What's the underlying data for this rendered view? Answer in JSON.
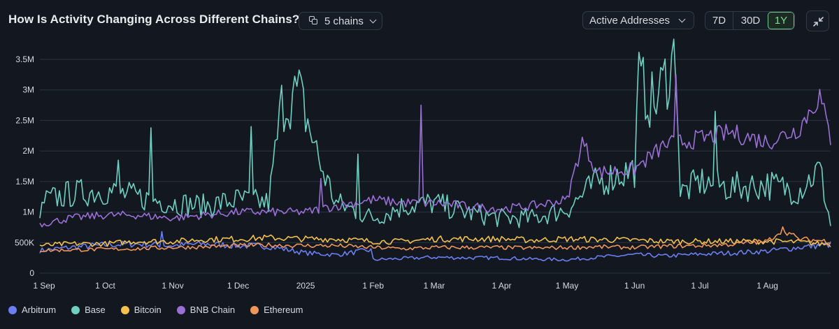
{
  "header": {
    "title": "How Is Activity Changing Across Different Chains?",
    "chains_label": "5 chains",
    "metric_label": "Active Addresses",
    "ranges": [
      "7D",
      "30D",
      "1Y"
    ],
    "active_range": "1Y"
  },
  "colors": {
    "background": "#131820",
    "grid": "#2a3442",
    "active_range": "#6fc98a"
  },
  "icons": {
    "chains": "copy-icon",
    "chains_dropdown": "chevron-down-icon",
    "metric_dropdown": "chevron-down-icon",
    "collapse": "collapse-arrows-icon"
  },
  "chart_data": {
    "type": "line",
    "title": "",
    "xlabel": "",
    "ylabel": "",
    "x": {
      "start": "2024-09-01",
      "end": "2025-08-30",
      "tick_labels": [
        "1 Sep",
        "1 Oct",
        "1 Nov",
        "1 Dec",
        "2025",
        "1 Feb",
        "1 Mar",
        "1 Apr",
        "1 May",
        "1 Jun",
        "1 Jul",
        "1 Aug"
      ]
    },
    "y": {
      "min": 0,
      "max": 3500000,
      "ticks": [
        0,
        500000,
        1000000,
        1500000,
        2000000,
        2500000,
        3000000,
        3500000
      ],
      "tick_labels": [
        "0",
        "500K",
        "1M",
        "1.5M",
        "2M",
        "2.5M",
        "3M",
        "3.5M"
      ]
    },
    "grid": true,
    "legend_position": "bottom-left",
    "series": [
      {
        "name": "Arbitrum",
        "color": "#6b7ff0",
        "points": [
          [
            "2024-09-01",
            370000
          ],
          [
            "2024-09-15",
            420000
          ],
          [
            "2024-10-01",
            460000
          ],
          [
            "2024-10-15",
            480000
          ],
          [
            "2024-10-27",
            680000
          ],
          [
            "2024-11-01",
            450000
          ],
          [
            "2024-11-15",
            480000
          ],
          [
            "2024-12-01",
            450000
          ],
          [
            "2024-12-15",
            440000
          ],
          [
            "2025-01-01",
            330000
          ],
          [
            "2025-01-15",
            300000
          ],
          [
            "2025-01-31",
            380000
          ],
          [
            "2025-02-01",
            220000
          ],
          [
            "2025-02-15",
            240000
          ],
          [
            "2025-03-01",
            260000
          ],
          [
            "2025-03-15",
            250000
          ],
          [
            "2025-04-01",
            250000
          ],
          [
            "2025-04-15",
            230000
          ],
          [
            "2025-05-01",
            220000
          ],
          [
            "2025-05-15",
            260000
          ],
          [
            "2025-06-01",
            300000
          ],
          [
            "2025-06-15",
            280000
          ],
          [
            "2025-07-01",
            310000
          ],
          [
            "2025-07-15",
            330000
          ],
          [
            "2025-08-01",
            360000
          ],
          [
            "2025-08-15",
            420000
          ],
          [
            "2025-08-30",
            470000
          ]
        ]
      },
      {
        "name": "Base",
        "color": "#6fd0c2",
        "points": [
          [
            "2024-09-01",
            900000
          ],
          [
            "2024-09-03",
            1180000
          ],
          [
            "2024-09-15",
            1300000
          ],
          [
            "2024-10-01",
            1350000
          ],
          [
            "2024-10-07",
            1850000
          ],
          [
            "2024-10-15",
            1250000
          ],
          [
            "2024-10-22",
            2380000
          ],
          [
            "2024-11-01",
            1150000
          ],
          [
            "2024-11-15",
            1100000
          ],
          [
            "2024-12-01",
            1200000
          ],
          [
            "2024-12-07",
            2400000
          ],
          [
            "2024-12-15",
            1150000
          ],
          [
            "2024-12-21",
            2750000
          ],
          [
            "2024-12-29",
            2950000
          ],
          [
            "2025-01-08",
            1750000
          ],
          [
            "2025-01-15",
            1150000
          ],
          [
            "2025-01-25",
            1950000
          ],
          [
            "2025-02-01",
            900000
          ],
          [
            "2025-02-15",
            1100000
          ],
          [
            "2025-03-01",
            1150000
          ],
          [
            "2025-03-15",
            1000000
          ],
          [
            "2025-04-01",
            900000
          ],
          [
            "2025-04-15",
            900000
          ],
          [
            "2025-05-01",
            1050000
          ],
          [
            "2025-05-15",
            1500000
          ],
          [
            "2025-06-01",
            1700000
          ],
          [
            "2025-06-03",
            3150000
          ],
          [
            "2025-06-10",
            2750000
          ],
          [
            "2025-06-20",
            3600000
          ],
          [
            "2025-06-22",
            1300000
          ],
          [
            "2025-07-01",
            1500000
          ],
          [
            "2025-07-08",
            2650000
          ],
          [
            "2025-07-15",
            1400000
          ],
          [
            "2025-08-01",
            1450000
          ],
          [
            "2025-08-15",
            1350000
          ],
          [
            "2025-08-25",
            1700000
          ],
          [
            "2025-08-30",
            800000
          ]
        ]
      },
      {
        "name": "Bitcoin",
        "color": "#f2c14e",
        "points": [
          [
            "2024-09-01",
            450000
          ],
          [
            "2024-09-15",
            480000
          ],
          [
            "2024-10-01",
            480000
          ],
          [
            "2024-10-15",
            520000
          ],
          [
            "2024-11-01",
            520000
          ],
          [
            "2024-11-15",
            550000
          ],
          [
            "2024-12-01",
            560000
          ],
          [
            "2024-12-15",
            580000
          ],
          [
            "2025-01-01",
            560000
          ],
          [
            "2025-01-15",
            560000
          ],
          [
            "2025-02-01",
            520000
          ],
          [
            "2025-02-15",
            520000
          ],
          [
            "2025-03-01",
            560000
          ],
          [
            "2025-03-15",
            560000
          ],
          [
            "2025-04-01",
            560000
          ],
          [
            "2025-04-15",
            540000
          ],
          [
            "2025-05-01",
            560000
          ],
          [
            "2025-05-15",
            550000
          ],
          [
            "2025-06-01",
            540000
          ],
          [
            "2025-06-15",
            520000
          ],
          [
            "2025-07-01",
            520000
          ],
          [
            "2025-07-15",
            520000
          ],
          [
            "2025-08-01",
            520000
          ],
          [
            "2025-08-15",
            510000
          ],
          [
            "2025-08-30",
            470000
          ]
        ]
      },
      {
        "name": "BNB Chain",
        "color": "#9a6fd6",
        "points": [
          [
            "2024-09-01",
            800000
          ],
          [
            "2024-09-15",
            900000
          ],
          [
            "2024-10-01",
            950000
          ],
          [
            "2024-10-15",
            950000
          ],
          [
            "2024-11-01",
            900000
          ],
          [
            "2024-11-15",
            950000
          ],
          [
            "2024-12-01",
            1000000
          ],
          [
            "2024-12-15",
            1000000
          ],
          [
            "2025-01-01",
            1000000
          ],
          [
            "2025-01-08",
            1550000
          ],
          [
            "2025-01-15",
            1100000
          ],
          [
            "2025-02-01",
            1200000
          ],
          [
            "2025-02-15",
            1150000
          ],
          [
            "2025-02-23",
            2750000
          ],
          [
            "2025-03-01",
            1150000
          ],
          [
            "2025-03-15",
            1100000
          ],
          [
            "2025-04-01",
            1050000
          ],
          [
            "2025-04-15",
            1100000
          ],
          [
            "2025-05-01",
            1200000
          ],
          [
            "2025-05-08",
            2150000
          ],
          [
            "2025-05-15",
            1650000
          ],
          [
            "2025-06-01",
            1700000
          ],
          [
            "2025-06-15",
            2100000
          ],
          [
            "2025-06-20",
            3250000
          ],
          [
            "2025-07-01",
            2200000
          ],
          [
            "2025-07-15",
            2300000
          ],
          [
            "2025-08-01",
            2150000
          ],
          [
            "2025-08-15",
            2350000
          ],
          [
            "2025-08-25",
            2900000
          ],
          [
            "2025-08-30",
            2200000
          ]
        ]
      },
      {
        "name": "Ethereum",
        "color": "#f0965a",
        "points": [
          [
            "2024-09-01",
            370000
          ],
          [
            "2024-09-15",
            380000
          ],
          [
            "2024-10-01",
            390000
          ],
          [
            "2024-10-15",
            400000
          ],
          [
            "2024-11-01",
            420000
          ],
          [
            "2024-11-15",
            430000
          ],
          [
            "2024-12-01",
            450000
          ],
          [
            "2024-12-15",
            460000
          ],
          [
            "2025-01-01",
            450000
          ],
          [
            "2025-01-15",
            450000
          ],
          [
            "2025-02-01",
            420000
          ],
          [
            "2025-02-15",
            400000
          ],
          [
            "2025-03-01",
            420000
          ],
          [
            "2025-03-15",
            420000
          ],
          [
            "2025-04-01",
            420000
          ],
          [
            "2025-04-15",
            410000
          ],
          [
            "2025-05-01",
            420000
          ],
          [
            "2025-05-15",
            430000
          ],
          [
            "2025-06-01",
            420000
          ],
          [
            "2025-06-15",
            440000
          ],
          [
            "2025-07-01",
            450000
          ],
          [
            "2025-07-15",
            470000
          ],
          [
            "2025-08-01",
            520000
          ],
          [
            "2025-08-08",
            720000
          ],
          [
            "2025-08-15",
            560000
          ],
          [
            "2025-08-30",
            520000
          ]
        ]
      }
    ]
  }
}
